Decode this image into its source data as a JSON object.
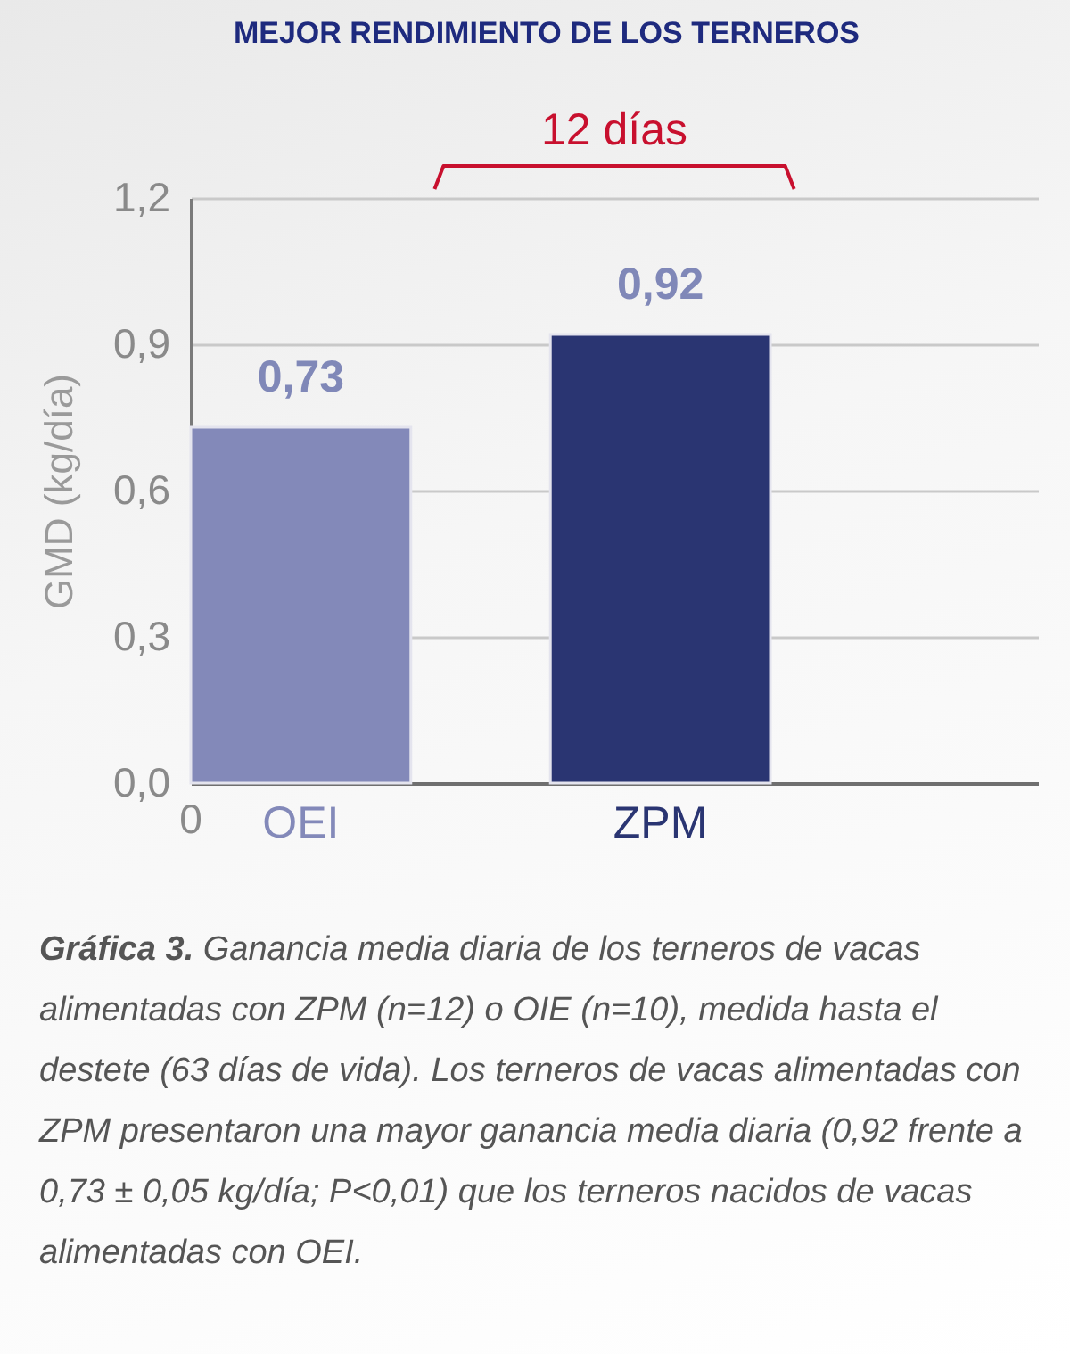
{
  "chart_data": {
    "type": "bar",
    "title": "MEJOR RENDIMIENTO DE LOS TERNEROS",
    "ylabel": "GMD (kg/día)",
    "categories": [
      "OEI",
      "ZPM"
    ],
    "values": [
      0.73,
      0.92
    ],
    "colors": [
      "#8389b9",
      "#2a3572"
    ],
    "value_labels": [
      "0,73",
      "0,92"
    ],
    "ylim": [
      0,
      1.2
    ],
    "yticks": [
      {
        "value": 0,
        "label": "0,0"
      },
      {
        "value": 0.3,
        "label": "0,3"
      },
      {
        "value": 0.6,
        "label": "0,6"
      },
      {
        "value": 0.9,
        "label": "0,9"
      },
      {
        "value": 1.2,
        "label": "1,2"
      }
    ],
    "grid": "y",
    "annotations": [
      "12 días",
      "0",
      "Gráfica 3.",
      "Ganancia media diaria de los terneros de vacas alimentadas con ZPM (n=12) o OIE (n=10), medida hasta el destete (63 días de vida). Los terneros de vacas alimentadas con ZPM presentaron una mayor ganancia media diaria (0,92 frente a 0,73 ± 0,05 kg/día; P<0,01) que los terneros nacidos de vacas alimentadas con OEI."
    ]
  }
}
